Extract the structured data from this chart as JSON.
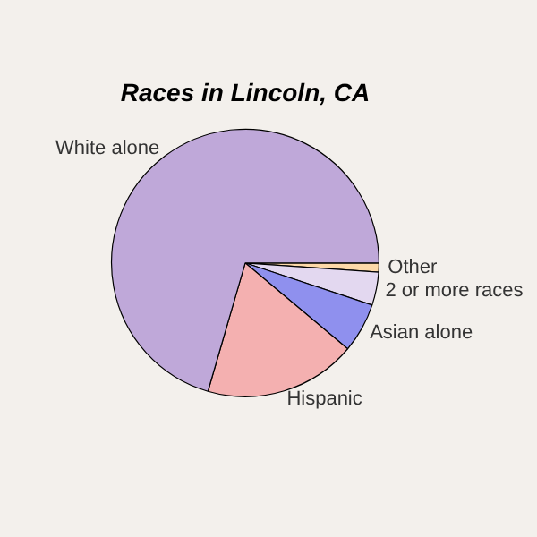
{
  "chart_data": {
    "type": "pie",
    "title": "Races in Lincoln, CA",
    "categories": [
      "Other",
      "2 or more races",
      "Asian alone",
      "Hispanic",
      "White alone"
    ],
    "values": [
      1.1,
      4,
      6,
      18.4,
      70.5
    ],
    "colors": [
      "#fdd9a8",
      "#e3d8f0",
      "#8f90ee",
      "#f4b0b0",
      "#bfa8d9"
    ],
    "legend": false
  }
}
